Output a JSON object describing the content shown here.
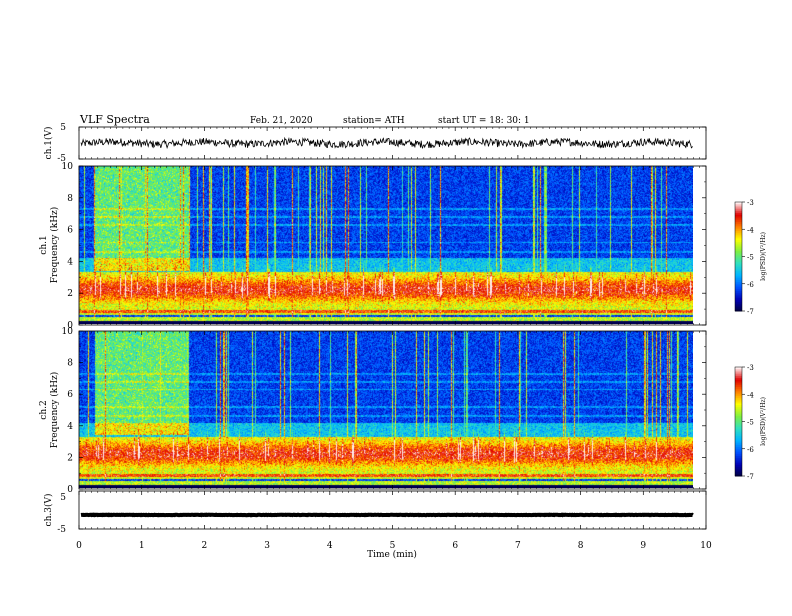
{
  "header": {
    "title": "VLF  Spectra",
    "date": "Feb. 21, 2020",
    "station": "station= ATH",
    "start": "start  UT  =    18: 30: 1"
  },
  "chart_data": [
    {
      "type": "line",
      "name": "ch1-waveform",
      "ylabel": "ch.1(V)",
      "ylim": [
        -5,
        5
      ],
      "yticks": [
        "5",
        "-5"
      ],
      "xlim": [
        0,
        10
      ],
      "baseline": 0,
      "amplitude": 1.2
    },
    {
      "type": "heatmap",
      "name": "ch1-spectrogram",
      "ylabel": "ch.1\nFrequency (kHz)",
      "ylabel_lines": [
        "ch.1",
        "Frequency (kHz)"
      ],
      "ylim": [
        0,
        10
      ],
      "yticks": [
        "0",
        "2",
        "4",
        "6",
        "8",
        "10"
      ],
      "xlim": [
        0,
        9.8
      ],
      "colorbar": {
        "label": "log(PSD)(V²/Hz)",
        "range": [
          -7,
          -3
        ],
        "ticks": [
          "-3",
          "-4",
          "-5",
          "-6",
          "-7"
        ]
      }
    },
    {
      "type": "heatmap",
      "name": "ch2-spectrogram",
      "ylabel": "ch.2\nFrequency (kHz)",
      "ylabel_lines": [
        "ch.2",
        "Frequency (kHz)"
      ],
      "ylim": [
        0,
        10
      ],
      "yticks": [
        "0",
        "2",
        "4",
        "6",
        "8",
        "10"
      ],
      "xlim": [
        0,
        9.8
      ],
      "colorbar": {
        "label": "log(PSD)(V²/Hz)",
        "range": [
          -7,
          -3
        ],
        "ticks": [
          "-3",
          "-4",
          "-5",
          "-6",
          "-7"
        ]
      }
    },
    {
      "type": "line",
      "name": "ch3-waveform",
      "ylabel": "ch.3(V)",
      "ylim": [
        -5,
        5
      ],
      "yticks": [
        "5",
        "-5"
      ],
      "xlim": [
        0,
        10
      ],
      "baseline": -1.3,
      "amplitude": 0.05
    }
  ],
  "xaxis": {
    "label": "Time  (min)",
    "ticks": [
      "0",
      "1",
      "2",
      "3",
      "4",
      "5",
      "6",
      "7",
      "8",
      "9",
      "10"
    ],
    "range": [
      0,
      10
    ]
  },
  "colors": {
    "background": "#000066",
    "colormap": [
      "#00003c",
      "#0000b4",
      "#0050ff",
      "#00b4ff",
      "#30e0c0",
      "#80f040",
      "#ffff00",
      "#ff8000",
      "#e00000",
      "#fff0f0"
    ]
  }
}
